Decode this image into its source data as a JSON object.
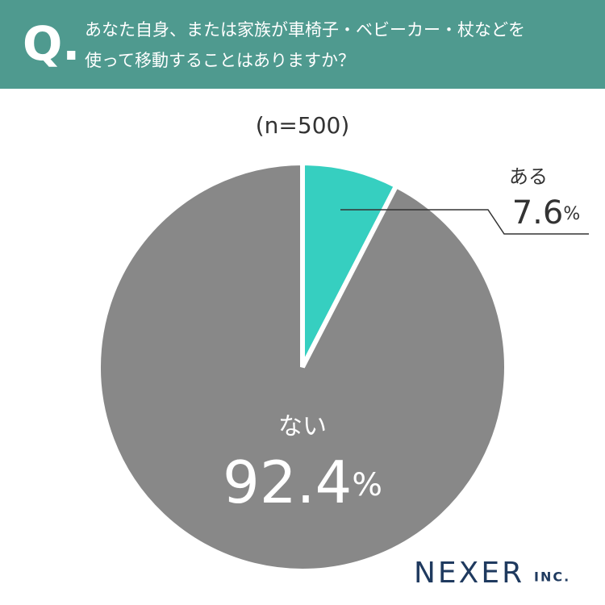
{
  "chart_data": {
    "type": "pie",
    "title_mark": "Q.",
    "title": [
      "あなた自身、または家族が車椅子・ベビーカー・杖などを",
      "使って移動することはありますか？"
    ],
    "subtitle": "(n=500)",
    "categories": [
      "ある",
      "ない"
    ],
    "values": [
      7.6,
      92.4
    ],
    "value_labels": [
      "7.6%",
      "92.4%"
    ],
    "colors": [
      "#36cfc0",
      "#888888"
    ],
    "logo": [
      "NEXER",
      "INC."
    ]
  }
}
